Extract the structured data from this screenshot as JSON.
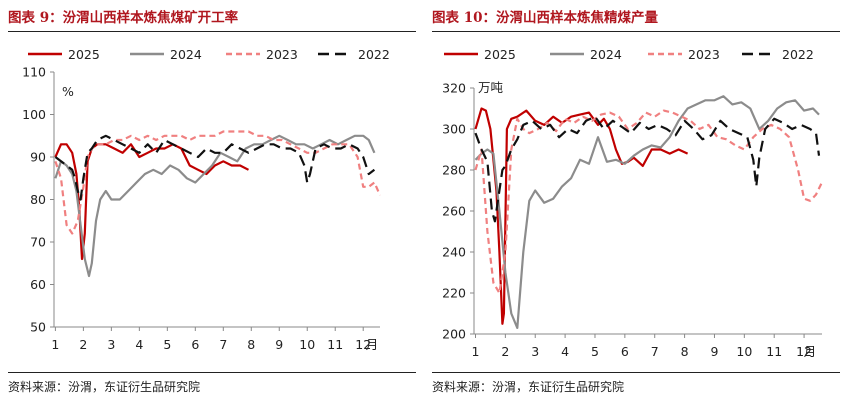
{
  "chart_data": [
    {
      "type": "line",
      "title": "图表 9：汾渭山西样本炼焦煤矿开工率",
      "ylabel": "%",
      "ylim": [
        50,
        110
      ],
      "yticks": [
        50,
        60,
        70,
        80,
        90,
        100,
        110
      ],
      "xlim": [
        0.95,
        12.6
      ],
      "xticks": [
        1,
        2,
        3,
        4,
        5,
        6,
        7,
        8,
        9,
        10,
        11,
        12
      ],
      "x_unit": "月",
      "legend": "top",
      "series": [
        {
          "name": "2025",
          "color": "#c00000",
          "dash": "solid",
          "x": [
            1.0,
            1.2,
            1.4,
            1.6,
            1.75,
            1.85,
            1.95,
            2.05,
            2.15,
            2.3,
            2.5,
            2.8,
            3.1,
            3.4,
            3.7,
            4.0,
            4.3,
            4.6,
            4.9,
            5.2,
            5.5,
            5.8,
            6.1,
            6.4,
            6.7,
            7.0,
            7.3,
            7.6,
            7.9
          ],
          "y": [
            90,
            93,
            93,
            91,
            86,
            78,
            66,
            72,
            89,
            92,
            93,
            93,
            92,
            91,
            93,
            90,
            91,
            92,
            92,
            93,
            92,
            88,
            87,
            86,
            88,
            89,
            88,
            88,
            87
          ]
        },
        {
          "name": "2024",
          "color": "#8c8c8c",
          "dash": "solid",
          "x": [
            1.0,
            1.2,
            1.4,
            1.6,
            1.75,
            1.9,
            2.05,
            2.2,
            2.3,
            2.45,
            2.6,
            2.8,
            3.0,
            3.3,
            3.6,
            3.9,
            4.2,
            4.5,
            4.8,
            5.1,
            5.4,
            5.7,
            6.0,
            6.3,
            6.6,
            6.9,
            7.2,
            7.5,
            7.8,
            8.1,
            8.4,
            8.7,
            9.0,
            9.3,
            9.6,
            9.9,
            10.2,
            10.5,
            10.8,
            11.1,
            11.4,
            11.7,
            12.0,
            12.2,
            12.4
          ],
          "y": [
            85,
            89,
            88,
            86,
            82,
            74,
            66,
            62,
            65,
            75,
            80,
            82,
            80,
            80,
            82,
            84,
            86,
            87,
            86,
            88,
            87,
            85,
            84,
            86,
            88,
            91,
            90,
            89,
            92,
            93,
            93,
            94,
            95,
            94,
            93,
            93,
            92,
            93,
            94,
            93,
            94,
            95,
            95,
            94,
            91
          ]
        },
        {
          "name": "2023",
          "color": "#f08080",
          "dash": "dash",
          "x": [
            1.0,
            1.2,
            1.4,
            1.6,
            1.8,
            2.0,
            2.15,
            2.3,
            2.5,
            2.8,
            3.1,
            3.4,
            3.7,
            4.0,
            4.3,
            4.6,
            4.9,
            5.2,
            5.5,
            5.8,
            6.1,
            6.4,
            6.7,
            7.0,
            7.3,
            7.6,
            7.9,
            8.2,
            8.5,
            8.8,
            9.1,
            9.4,
            9.7,
            10.0,
            10.3,
            10.6,
            10.9,
            11.2,
            11.5,
            11.8,
            12.0,
            12.2,
            12.4,
            12.6
          ],
          "y": [
            89,
            85,
            74,
            72,
            75,
            83,
            90,
            92,
            93,
            93,
            94,
            94,
            95,
            94,
            95,
            94,
            95,
            95,
            95,
            94,
            95,
            95,
            95,
            96,
            96,
            96,
            96,
            95,
            95,
            94,
            94,
            93,
            92,
            91,
            91,
            92,
            93,
            93,
            93,
            90,
            83,
            83,
            84,
            81
          ]
        },
        {
          "name": "2022",
          "color": "#111111",
          "dash": "longdash",
          "x": [
            1.0,
            1.2,
            1.4,
            1.6,
            1.7,
            1.8,
            1.9,
            2.0,
            2.15,
            2.3,
            2.5,
            2.8,
            3.1,
            3.4,
            3.7,
            4.0,
            4.3,
            4.6,
            4.9,
            5.2,
            5.5,
            5.8,
            6.1,
            6.4,
            6.7,
            7.0,
            7.3,
            7.6,
            7.9,
            8.2,
            8.5,
            8.8,
            9.1,
            9.4,
            9.7,
            9.9,
            10.0,
            10.1,
            10.3,
            10.6,
            10.9,
            11.2,
            11.5,
            11.8,
            12.0,
            12.2,
            12.4
          ],
          "y": [
            90,
            89,
            88,
            87,
            85,
            82,
            80,
            85,
            91,
            92,
            94,
            95,
            94,
            93,
            92,
            91,
            93,
            91,
            94,
            93,
            92,
            91,
            90,
            92,
            91,
            91,
            93,
            92,
            91,
            92,
            93,
            93,
            92,
            92,
            91,
            88,
            84,
            86,
            92,
            93,
            92,
            92,
            93,
            92,
            90,
            86,
            87
          ]
        }
      ]
    },
    {
      "type": "line",
      "title": "图表 10：汾渭山西样本炼焦精煤产量",
      "ylabel": "万吨",
      "ylim": [
        200,
        320
      ],
      "yticks": [
        200,
        220,
        240,
        260,
        280,
        300,
        320
      ],
      "xlim": [
        0.95,
        12.6
      ],
      "xticks": [
        1,
        2,
        3,
        4,
        5,
        6,
        7,
        8,
        9,
        10,
        11,
        12
      ],
      "x_unit": "月",
      "legend": "top",
      "series": [
        {
          "name": "2025",
          "color": "#c00000",
          "dash": "solid",
          "x": [
            1.0,
            1.2,
            1.35,
            1.5,
            1.7,
            1.8,
            1.9,
            1.95,
            2.05,
            2.2,
            2.4,
            2.7,
            3.0,
            3.3,
            3.6,
            3.9,
            4.2,
            4.5,
            4.8,
            5.1,
            5.3,
            5.5,
            5.7,
            5.9,
            6.1,
            6.3,
            6.6,
            6.9,
            7.2,
            7.5,
            7.8,
            8.1
          ],
          "y": [
            300,
            310,
            309,
            300,
            270,
            240,
            205,
            210,
            300,
            305,
            306,
            309,
            304,
            302,
            306,
            303,
            306,
            307,
            308,
            302,
            305,
            300,
            290,
            283,
            284,
            286,
            282,
            290,
            290,
            288,
            290,
            288
          ]
        },
        {
          "name": "2024",
          "color": "#8c8c8c",
          "dash": "solid",
          "x": [
            1.0,
            1.2,
            1.4,
            1.6,
            1.8,
            2.0,
            2.2,
            2.4,
            2.6,
            2.8,
            3.0,
            3.3,
            3.6,
            3.9,
            4.2,
            4.5,
            4.8,
            5.1,
            5.4,
            5.7,
            6.0,
            6.3,
            6.6,
            6.9,
            7.2,
            7.5,
            7.8,
            8.1,
            8.4,
            8.7,
            9.0,
            9.3,
            9.6,
            9.9,
            10.2,
            10.5,
            10.8,
            11.1,
            11.4,
            11.7,
            12.0,
            12.3,
            12.5
          ],
          "y": [
            285,
            288,
            290,
            288,
            260,
            230,
            210,
            203,
            240,
            265,
            270,
            264,
            266,
            272,
            276,
            285,
            283,
            296,
            284,
            285,
            283,
            287,
            290,
            292,
            291,
            296,
            304,
            310,
            312,
            314,
            314,
            316,
            312,
            313,
            310,
            300,
            304,
            310,
            313,
            314,
            309,
            310,
            307
          ]
        },
        {
          "name": "2023",
          "color": "#f08080",
          "dash": "dash",
          "x": [
            1.0,
            1.2,
            1.4,
            1.6,
            1.8,
            2.0,
            2.2,
            2.4,
            2.6,
            2.8,
            3.1,
            3.4,
            3.7,
            4.0,
            4.3,
            4.6,
            4.9,
            5.2,
            5.5,
            5.8,
            6.1,
            6.4,
            6.7,
            7.0,
            7.3,
            7.6,
            7.9,
            8.2,
            8.5,
            8.8,
            9.1,
            9.4,
            9.7,
            10.0,
            10.3,
            10.6,
            10.9,
            11.2,
            11.5,
            11.8,
            12.0,
            12.2,
            12.4,
            12.6
          ],
          "y": [
            280,
            290,
            250,
            225,
            220,
            240,
            290,
            305,
            300,
            298,
            300,
            303,
            299,
            305,
            303,
            306,
            304,
            307,
            308,
            306,
            300,
            303,
            308,
            306,
            309,
            308,
            306,
            304,
            300,
            302,
            296,
            295,
            292,
            290,
            296,
            300,
            302,
            300,
            296,
            280,
            266,
            265,
            268,
            274
          ]
        },
        {
          "name": "2022",
          "color": "#111111",
          "dash": "longdash",
          "x": [
            1.0,
            1.2,
            1.4,
            1.55,
            1.65,
            1.75,
            1.9,
            2.0,
            2.2,
            2.4,
            2.6,
            2.9,
            3.2,
            3.5,
            3.8,
            4.1,
            4.4,
            4.7,
            5.0,
            5.3,
            5.6,
            5.9,
            6.2,
            6.5,
            6.8,
            7.1,
            7.4,
            7.7,
            8.0,
            8.3,
            8.6,
            8.9,
            9.2,
            9.5,
            9.8,
            10.1,
            10.3,
            10.4,
            10.5,
            10.7,
            11.0,
            11.3,
            11.6,
            11.9,
            12.2,
            12.4,
            12.5
          ],
          "y": [
            298,
            290,
            284,
            260,
            255,
            265,
            280,
            282,
            290,
            295,
            302,
            304,
            300,
            302,
            296,
            300,
            298,
            304,
            306,
            300,
            304,
            301,
            298,
            303,
            300,
            302,
            300,
            297,
            304,
            300,
            295,
            297,
            304,
            300,
            298,
            296,
            285,
            272,
            286,
            300,
            305,
            303,
            300,
            302,
            300,
            298,
            287
          ]
        }
      ]
    }
  ],
  "panels": [
    {
      "title": "图表 9：汾渭山西样本炼焦煤矿开工率",
      "source": "资料来源：汾渭，东证衍生品研究院"
    },
    {
      "title": "图表 10：汾渭山西样本炼焦精煤产量",
      "source": "资料来源：汾渭，东证衍生品研究院"
    }
  ]
}
